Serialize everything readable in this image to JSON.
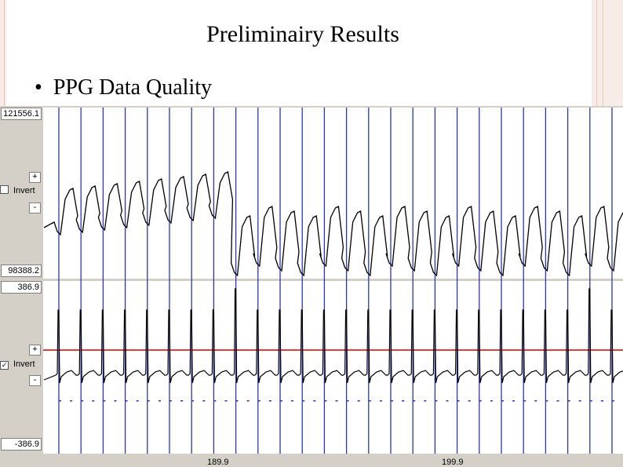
{
  "slide": {
    "title": "Preliminairy Results",
    "bullet": "PPG Data Quality"
  },
  "channels": [
    {
      "max_value": "121556.1",
      "min_value": "98388.2",
      "plus_label": "+",
      "minus_label": "-",
      "invert_label": "Invert",
      "invert_checked": false
    },
    {
      "max_value": "386.9",
      "min_value": "-386.9",
      "plus_label": "+",
      "minus_label": "-",
      "invert_label": "Invert",
      "invert_checked": true
    }
  ],
  "time_axis": {
    "ticks": [
      "189.9",
      "199.9"
    ]
  },
  "colors": {
    "beat_marker": "#2b35b5",
    "threshold": "#d40000",
    "trace": "#000000",
    "panel_bg": "#d4d0c8"
  }
}
